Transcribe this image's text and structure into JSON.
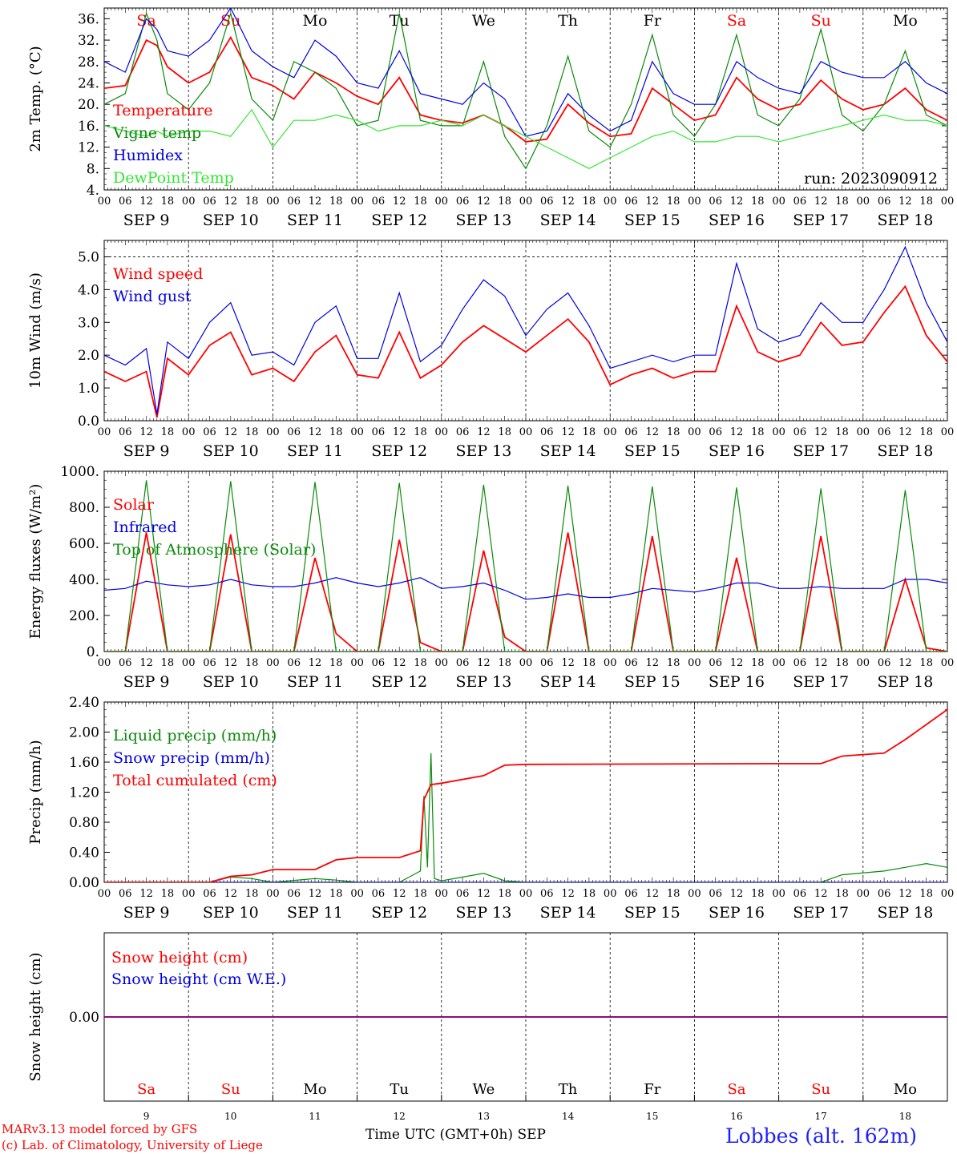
{
  "colors": {
    "red": "#ff0000",
    "green": "#0a8a0a",
    "blue": "#0000e0",
    "lime": "#33e633",
    "purple": "#800080",
    "weekend": "#ff0000",
    "weekday": "#000000",
    "station": "#1f1fff"
  },
  "days": [
    {
      "abbr": "Sa",
      "num": "9",
      "date": "SEP  9",
      "weekend": true
    },
    {
      "abbr": "Su",
      "num": "10",
      "date": "SEP 10",
      "weekend": true
    },
    {
      "abbr": "Mo",
      "num": "11",
      "date": "SEP 11",
      "weekend": false
    },
    {
      "abbr": "Tu",
      "num": "12",
      "date": "SEP 12",
      "weekend": false
    },
    {
      "abbr": "We",
      "num": "13",
      "date": "SEP 13",
      "weekend": false
    },
    {
      "abbr": "Th",
      "num": "14",
      "date": "SEP 14",
      "weekend": false
    },
    {
      "abbr": "Fr",
      "num": "15",
      "date": "SEP 15",
      "weekend": false
    },
    {
      "abbr": "Sa",
      "num": "16",
      "date": "SEP 16",
      "weekend": true
    },
    {
      "abbr": "Su",
      "num": "17",
      "date": "SEP 17",
      "weekend": true
    },
    {
      "abbr": "Mo",
      "num": "18",
      "date": "SEP 18",
      "weekend": false
    }
  ],
  "hour_ticks": [
    "00",
    "06",
    "12",
    "18"
  ],
  "hour_tick_end": "00",
  "footer": {
    "credit_line1": "MARv3.13 model forced by GFS",
    "credit_line2": "(c) Lab. of Climatology, University of Liege",
    "x_title": "Time UTC (GMT+0h) SEP",
    "station": "Lobbes (alt. 162m)"
  },
  "chart_data": [
    {
      "type": "line",
      "ylabel": "2m Temp. (°C)",
      "yticks": [
        "4.",
        "8.",
        "12.",
        "16.",
        "20.",
        "24.",
        "28.",
        "32.",
        "36."
      ],
      "ylim": [
        4,
        38
      ],
      "x_unit": "hours since SEP 9 00 UTC",
      "xlim": [
        0,
        240
      ],
      "annotation": "run: 2023090912",
      "series": [
        {
          "name": "Temperature",
          "color": "red",
          "x": [
            0,
            6,
            12,
            15,
            18,
            24,
            30,
            36,
            42,
            48,
            54,
            60,
            66,
            72,
            78,
            84,
            90,
            96,
            102,
            108,
            114,
            120,
            126,
            132,
            138,
            144,
            150,
            156,
            162,
            168,
            174,
            180,
            186,
            192,
            198,
            204,
            210,
            216,
            222,
            228,
            234,
            240
          ],
          "y": [
            23,
            23.5,
            32,
            31,
            27,
            24,
            26,
            32.5,
            25,
            23.5,
            21,
            26,
            24,
            21.5,
            20,
            25,
            18,
            17,
            16.5,
            18,
            16,
            13,
            13.5,
            20,
            16.5,
            14,
            14.5,
            23,
            20,
            17,
            18,
            25,
            21,
            19,
            20,
            24.5,
            21,
            19,
            20,
            23,
            19,
            17
          ]
        },
        {
          "name": "Vigne temp",
          "color": "green",
          "x": [
            0,
            6,
            12,
            15,
            18,
            24,
            30,
            36,
            42,
            48,
            54,
            60,
            66,
            72,
            78,
            84,
            90,
            96,
            102,
            108,
            114,
            120,
            126,
            132,
            138,
            144,
            150,
            156,
            162,
            168,
            174,
            180,
            186,
            192,
            198,
            204,
            210,
            216,
            222,
            228,
            234,
            240
          ],
          "y": [
            20,
            22,
            37,
            32,
            22,
            19,
            24,
            37,
            21,
            17,
            28,
            26,
            23,
            16,
            17,
            37,
            17,
            16,
            16,
            28,
            14,
            8,
            16,
            29,
            15,
            12,
            20,
            33,
            18,
            14,
            20,
            33,
            18,
            16,
            21,
            34,
            18,
            15,
            20,
            30,
            18,
            16
          ]
        },
        {
          "name": "Humidex",
          "color": "blue",
          "x": [
            0,
            6,
            12,
            15,
            18,
            24,
            30,
            36,
            42,
            48,
            54,
            60,
            66,
            72,
            78,
            84,
            90,
            96,
            102,
            108,
            114,
            120,
            126,
            132,
            138,
            144,
            150,
            156,
            162,
            168,
            174,
            180,
            186,
            192,
            198,
            204,
            210,
            216,
            222,
            228,
            234,
            240
          ],
          "y": [
            28,
            26,
            36,
            34,
            30,
            29,
            32,
            38,
            30,
            27,
            25,
            32,
            29,
            24,
            23,
            30,
            22,
            21,
            20,
            24,
            21,
            14,
            15,
            22,
            18,
            15,
            17,
            28,
            22,
            20,
            20,
            28,
            25,
            23,
            22,
            28,
            26,
            25,
            25,
            28,
            24,
            22
          ]
        },
        {
          "name": "DewPoint Temp",
          "color": "lime",
          "x": [
            0,
            6,
            12,
            15,
            18,
            24,
            30,
            36,
            42,
            48,
            54,
            60,
            66,
            72,
            78,
            84,
            90,
            96,
            102,
            108,
            114,
            120,
            126,
            132,
            138,
            144,
            150,
            156,
            162,
            168,
            174,
            180,
            186,
            192,
            198,
            204,
            210,
            216,
            222,
            228,
            234,
            240
          ],
          "y": [
            16,
            15,
            14,
            15,
            14,
            15,
            15,
            14,
            19,
            12,
            17,
            17,
            18,
            17,
            15,
            16,
            16,
            17,
            16,
            18,
            16,
            14,
            12,
            10,
            8,
            10,
            12,
            14,
            15,
            13,
            13,
            14,
            14,
            13,
            14,
            15,
            16,
            17,
            18,
            17,
            17,
            16
          ]
        }
      ]
    },
    {
      "type": "line",
      "ylabel": "10m Wind (m/s)",
      "yticks": [
        "0.0",
        "1.0",
        "2.0",
        "3.0",
        "4.0",
        "5.0"
      ],
      "ylim": [
        0,
        5.5
      ],
      "x_unit": "hours since SEP 9 00 UTC",
      "xlim": [
        0,
        240
      ],
      "series": [
        {
          "name": "Wind speed",
          "color": "red",
          "x": [
            0,
            6,
            12,
            15,
            18,
            24,
            30,
            36,
            42,
            48,
            54,
            60,
            66,
            72,
            78,
            84,
            90,
            96,
            102,
            108,
            114,
            120,
            126,
            132,
            138,
            144,
            150,
            156,
            162,
            168,
            174,
            180,
            186,
            192,
            198,
            204,
            210,
            216,
            222,
            228,
            234,
            240
          ],
          "y": [
            1.5,
            1.2,
            1.5,
            0.1,
            1.9,
            1.4,
            2.3,
            2.7,
            1.4,
            1.6,
            1.2,
            2.1,
            2.6,
            1.4,
            1.3,
            2.7,
            1.3,
            1.7,
            2.4,
            2.9,
            2.5,
            2.1,
            2.6,
            3.1,
            2.4,
            1.1,
            1.4,
            1.6,
            1.3,
            1.5,
            1.5,
            3.5,
            2.1,
            1.8,
            2.0,
            3.0,
            2.3,
            2.4,
            3.3,
            4.1,
            2.6,
            1.8
          ]
        },
        {
          "name": "Wind gust",
          "color": "blue",
          "x": [
            0,
            6,
            12,
            15,
            18,
            24,
            30,
            36,
            42,
            48,
            54,
            60,
            66,
            72,
            78,
            84,
            90,
            96,
            102,
            108,
            114,
            120,
            126,
            132,
            138,
            144,
            150,
            156,
            162,
            168,
            174,
            180,
            186,
            192,
            198,
            204,
            210,
            216,
            222,
            228,
            234,
            240
          ],
          "y": [
            2.0,
            1.7,
            2.2,
            0.2,
            2.4,
            1.9,
            3.0,
            3.6,
            2.0,
            2.1,
            1.7,
            3.0,
            3.5,
            1.9,
            1.9,
            3.9,
            1.8,
            2.3,
            3.4,
            4.3,
            3.8,
            2.6,
            3.4,
            3.9,
            2.9,
            1.6,
            1.8,
            2.0,
            1.8,
            2.0,
            2.0,
            4.8,
            2.8,
            2.4,
            2.6,
            3.6,
            3.0,
            3.0,
            4.0,
            5.3,
            3.6,
            2.4
          ]
        }
      ]
    },
    {
      "type": "line",
      "ylabel": "Energy fluxes (W/m²)",
      "yticks": [
        "0.",
        "200.",
        "400.",
        "600.",
        "800.",
        "1000."
      ],
      "ylim": [
        0,
        1000
      ],
      "x_unit": "hours since SEP 9 00 UTC",
      "xlim": [
        0,
        240
      ],
      "series": [
        {
          "name": "Solar",
          "color": "red",
          "x": [
            0,
            6,
            12,
            18,
            24,
            30,
            36,
            42,
            48,
            54,
            60,
            66,
            72,
            78,
            84,
            90,
            96,
            102,
            108,
            114,
            120,
            126,
            132,
            138,
            144,
            150,
            156,
            162,
            168,
            174,
            180,
            186,
            192,
            198,
            204,
            210,
            216,
            222,
            228,
            234,
            240
          ],
          "y": [
            0,
            0,
            660,
            0,
            0,
            0,
            650,
            0,
            0,
            0,
            520,
            100,
            0,
            0,
            620,
            50,
            0,
            0,
            560,
            80,
            0,
            0,
            660,
            0,
            0,
            0,
            640,
            0,
            0,
            0,
            520,
            0,
            0,
            0,
            640,
            0,
            0,
            0,
            400,
            20,
            0
          ]
        },
        {
          "name": "Infrared",
          "color": "blue",
          "x": [
            0,
            6,
            12,
            18,
            24,
            30,
            36,
            42,
            48,
            54,
            60,
            66,
            72,
            78,
            84,
            90,
            96,
            102,
            108,
            114,
            120,
            126,
            132,
            138,
            144,
            150,
            156,
            162,
            168,
            174,
            180,
            186,
            192,
            198,
            204,
            210,
            216,
            222,
            228,
            234,
            240
          ],
          "y": [
            340,
            350,
            390,
            370,
            360,
            370,
            400,
            370,
            360,
            360,
            380,
            410,
            380,
            360,
            380,
            410,
            350,
            360,
            380,
            340,
            290,
            300,
            320,
            300,
            300,
            320,
            350,
            340,
            330,
            350,
            380,
            380,
            350,
            350,
            360,
            350,
            350,
            350,
            400,
            400,
            380
          ]
        },
        {
          "name": "Top of Atmosphere (Solar)",
          "color": "green",
          "x": [
            0,
            6,
            12,
            18,
            24,
            30,
            36,
            42,
            48,
            54,
            60,
            66,
            72,
            78,
            84,
            90,
            96,
            102,
            108,
            114,
            120,
            126,
            132,
            138,
            144,
            150,
            156,
            162,
            168,
            174,
            180,
            186,
            192,
            198,
            204,
            210,
            216,
            222,
            228,
            234,
            240
          ],
          "y": [
            0,
            0,
            950,
            0,
            0,
            0,
            945,
            0,
            0,
            0,
            940,
            0,
            0,
            0,
            935,
            0,
            0,
            0,
            925,
            0,
            0,
            0,
            920,
            0,
            0,
            0,
            915,
            0,
            0,
            0,
            910,
            0,
            0,
            0,
            905,
            0,
            0,
            0,
            895,
            0,
            0
          ]
        }
      ]
    },
    {
      "type": "line",
      "ylabel": "Precip (mm/h)",
      "yticks": [
        "0.00",
        "0.40",
        "0.80",
        "1.20",
        "1.60",
        "2.00",
        "2.40"
      ],
      "ylim": [
        0,
        2.4
      ],
      "x_unit": "hours since SEP 9 00 UTC",
      "xlim": [
        0,
        240
      ],
      "series": [
        {
          "name": "Liquid precip (mm/h)",
          "color": "green",
          "x": [
            0,
            30,
            36,
            42,
            48,
            60,
            66,
            72,
            84,
            90,
            91,
            92,
            93,
            94,
            96,
            108,
            114,
            120,
            192,
            204,
            210,
            222,
            228,
            234,
            240
          ],
          "y": [
            0,
            0,
            0.07,
            0.05,
            0,
            0.05,
            0.03,
            0,
            0,
            0.15,
            1.15,
            0.2,
            1.72,
            0.05,
            0.02,
            0.12,
            0.02,
            0,
            0,
            0,
            0.1,
            0.15,
            0.2,
            0.25,
            0.2
          ]
        },
        {
          "name": "Snow precip (mm/h)",
          "color": "blue",
          "x": [
            0,
            240
          ],
          "y": [
            0,
            0
          ]
        },
        {
          "name": "Total cumulated (cm)",
          "color": "red",
          "x": [
            0,
            30,
            36,
            42,
            48,
            60,
            66,
            72,
            84,
            90,
            91,
            93,
            96,
            108,
            114,
            120,
            192,
            204,
            210,
            222,
            228,
            234,
            240
          ],
          "y": [
            0,
            0,
            0.08,
            0.1,
            0.17,
            0.17,
            0.3,
            0.33,
            0.33,
            0.42,
            1.1,
            1.3,
            1.32,
            1.42,
            1.56,
            1.57,
            1.58,
            1.58,
            1.68,
            1.72,
            1.9,
            2.1,
            2.3
          ]
        }
      ]
    },
    {
      "type": "line",
      "ylabel": "Snow height (cm)",
      "yticks": [
        "0.00"
      ],
      "ylim": [
        -1,
        1
      ],
      "x_unit": "hours since SEP 9 00 UTC",
      "xlim": [
        0,
        240
      ],
      "series": [
        {
          "name": "Snow height (cm)",
          "color": "red",
          "x": [
            0,
            240
          ],
          "y": [
            0,
            0
          ]
        },
        {
          "name": "Snow height (cm W.E.)",
          "color": "blue",
          "x": [
            0,
            240
          ],
          "y": [
            0,
            0
          ]
        }
      ]
    }
  ]
}
